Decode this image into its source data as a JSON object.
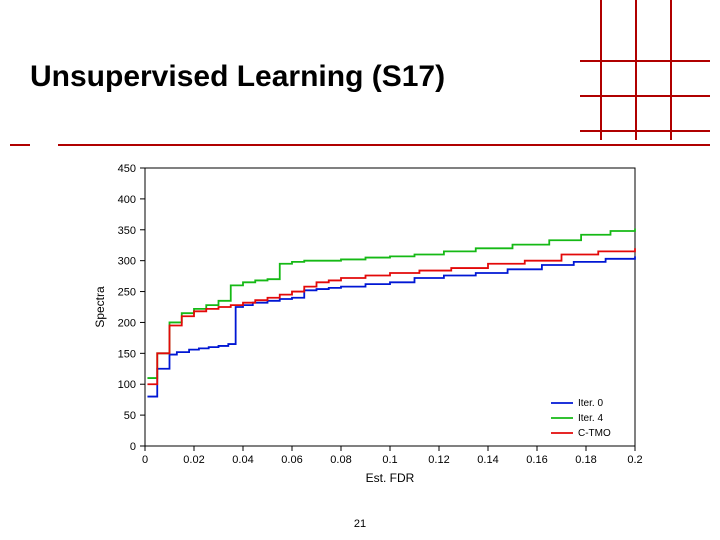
{
  "slide": {
    "title": "Unsupervised Learning (S17)",
    "page_number": "21"
  },
  "decor": {
    "grid_color": "#b00000",
    "v_offsets": [
      20,
      55,
      90
    ],
    "h_offsets": [
      60,
      95,
      130
    ]
  },
  "chart": {
    "type": "line-step",
    "background_color": "#ffffff",
    "axis_color": "#000000",
    "box_on": true,
    "line_width": 1.8,
    "tick_length": 5,
    "font_size_tick": 11,
    "font_size_label": 12,
    "font_size_legend": 10,
    "x": {
      "label": "Est. FDR",
      "min": 0,
      "max": 0.2,
      "ticks": [
        0,
        0.02,
        0.04,
        0.06,
        0.08,
        0.1,
        0.12,
        0.14,
        0.16,
        0.18,
        0.2
      ]
    },
    "y": {
      "label": "Spectra",
      "min": 0,
      "max": 450,
      "ticks": [
        0,
        50,
        100,
        150,
        200,
        250,
        300,
        350,
        400,
        450
      ]
    },
    "legend": {
      "position": "lower-right",
      "entries": [
        {
          "label": "Iter. 0",
          "color": "#0017d4"
        },
        {
          "label": "Iter. 4",
          "color": "#15b915"
        },
        {
          "label": "C-TMO",
          "color": "#e30909"
        }
      ]
    },
    "series": [
      {
        "name": "Iter. 0",
        "color": "#0017d4",
        "x": [
          0.001,
          0.005,
          0.01,
          0.013,
          0.018,
          0.022,
          0.026,
          0.03,
          0.034,
          0.037,
          0.04,
          0.044,
          0.05,
          0.055,
          0.06,
          0.065,
          0.07,
          0.075,
          0.08,
          0.09,
          0.1,
          0.11,
          0.122,
          0.135,
          0.148,
          0.162,
          0.175,
          0.188,
          0.2
        ],
        "y": [
          80,
          125,
          148,
          152,
          156,
          158,
          160,
          162,
          165,
          225,
          228,
          232,
          235,
          238,
          240,
          252,
          254,
          256,
          258,
          262,
          265,
          272,
          276,
          280,
          286,
          293,
          298,
          303,
          307
        ]
      },
      {
        "name": "Iter. 4",
        "color": "#15b915",
        "x": [
          0.001,
          0.005,
          0.01,
          0.015,
          0.02,
          0.025,
          0.03,
          0.035,
          0.04,
          0.045,
          0.05,
          0.055,
          0.06,
          0.065,
          0.07,
          0.075,
          0.08,
          0.09,
          0.1,
          0.11,
          0.122,
          0.135,
          0.15,
          0.165,
          0.178,
          0.19,
          0.2
        ],
        "y": [
          110,
          150,
          200,
          215,
          222,
          228,
          235,
          260,
          265,
          268,
          270,
          295,
          298,
          300,
          300,
          300,
          302,
          305,
          307,
          310,
          315,
          320,
          326,
          333,
          342,
          348,
          352
        ]
      },
      {
        "name": "C-TMO",
        "color": "#e30909",
        "x": [
          0.001,
          0.005,
          0.01,
          0.015,
          0.02,
          0.025,
          0.03,
          0.035,
          0.04,
          0.045,
          0.05,
          0.055,
          0.06,
          0.065,
          0.07,
          0.075,
          0.08,
          0.09,
          0.1,
          0.112,
          0.125,
          0.14,
          0.155,
          0.17,
          0.185,
          0.2
        ],
        "y": [
          100,
          150,
          195,
          210,
          218,
          222,
          225,
          228,
          232,
          236,
          240,
          245,
          250,
          258,
          265,
          268,
          272,
          276,
          280,
          284,
          288,
          295,
          300,
          310,
          315,
          320
        ]
      }
    ]
  }
}
